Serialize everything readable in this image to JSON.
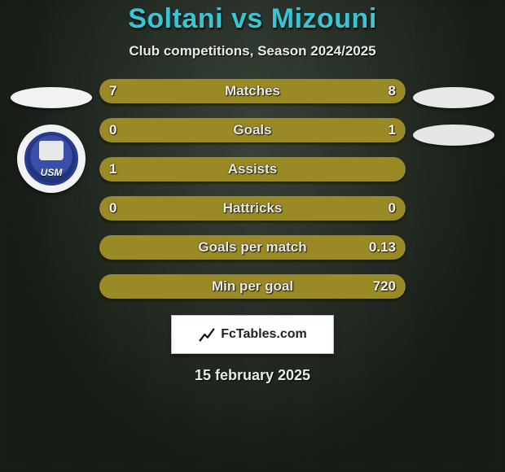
{
  "title": "Soltani vs Mizouni",
  "subtitle": "Club competitions, Season 2024/2025",
  "date": "15 february 2025",
  "footer_brand": "FcTables.com",
  "colors": {
    "title": "#39c5d4",
    "text": "#eaeaea",
    "shadow": "#000000",
    "badge_bg": "#ffffff",
    "left_fill": "#9a8a26",
    "right_fill": "#9a8a26",
    "empty_fill_left": "#9a8a26",
    "empty_fill_right": "#9a8a26"
  },
  "bar_style": {
    "height": 30,
    "radius": 16,
    "gap": 18,
    "label_fontsize": 17,
    "filled_color": "#9a8a26",
    "alt_color": "#9a8a26"
  },
  "left_side": {
    "flag_color": "#f2f2f2",
    "club": "USM",
    "club_badge_bg": "#f2f2f2",
    "club_badge_inner": "#3a4fa8"
  },
  "right_side": {
    "flag_color": "#e8e8e8",
    "club_flag_color": "#e6e6e4"
  },
  "rows": [
    {
      "label": "Matches",
      "left": "7",
      "right": "8",
      "left_pct": 47,
      "right_pct": 53
    },
    {
      "label": "Goals",
      "left": "0",
      "right": "1",
      "left_pct": 18,
      "right_pct": 82
    },
    {
      "label": "Assists",
      "left": "1",
      "right": "",
      "left_pct": 100,
      "right_pct": 0
    },
    {
      "label": "Hattricks",
      "left": "0",
      "right": "0",
      "left_pct": 50,
      "right_pct": 50
    },
    {
      "label": "Goals per match",
      "left": "",
      "right": "0.13",
      "left_pct": 0,
      "right_pct": 100
    },
    {
      "label": "Min per goal",
      "left": "",
      "right": "720",
      "left_pct": 0,
      "right_pct": 100
    }
  ]
}
